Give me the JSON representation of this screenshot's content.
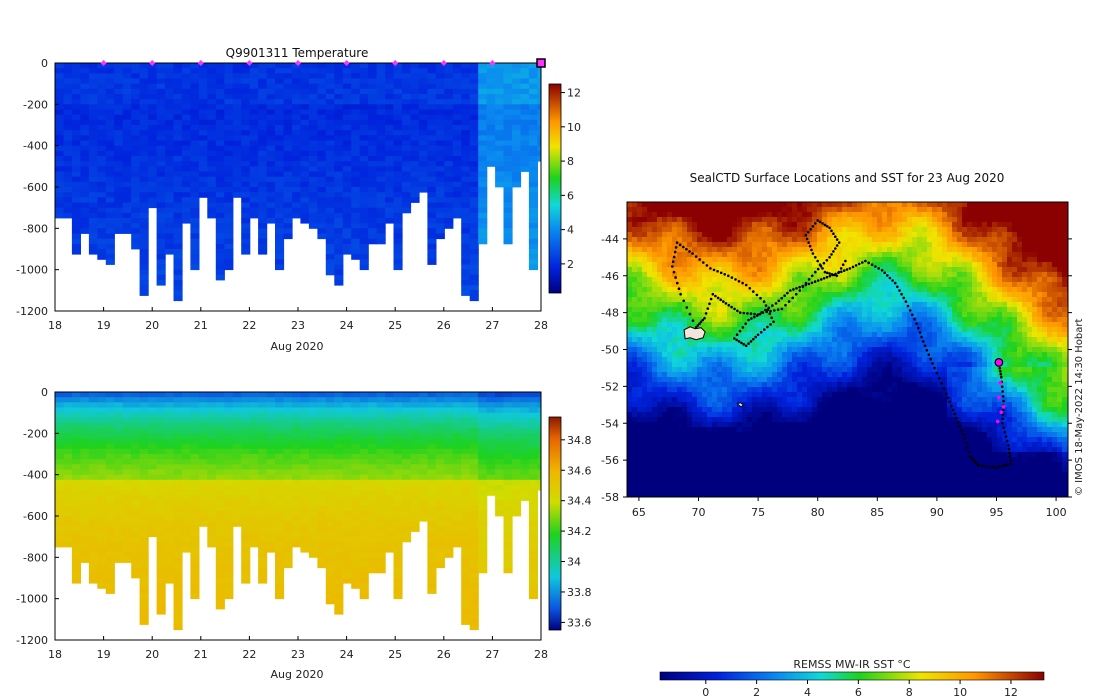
{
  "chart_data": [
    {
      "type": "heatmap",
      "title": "Q9901311  Temperature",
      "variable": "temperature",
      "xlabel": "Aug 2020",
      "xlim": [
        18,
        28
      ],
      "xticks": [
        "18",
        "19",
        "20",
        "21",
        "22",
        "23",
        "24",
        "25",
        "26",
        "27",
        "28"
      ],
      "ylim": [
        -1200,
        0
      ],
      "yticks": [
        "0",
        "-200",
        "-400",
        "-600",
        "-800",
        "-1000",
        "-1200"
      ],
      "colorbar": {
        "min": 0.3,
        "max": 12.5,
        "ticks": [
          "2",
          "4",
          "6",
          "8",
          "10",
          "12"
        ]
      },
      "marker_color": "#ff33ff",
      "profile_markers_day": [
        19,
        20,
        21,
        22,
        23,
        24,
        25,
        26,
        27
      ],
      "last_profile_day": 28
    },
    {
      "type": "heatmap",
      "title": "",
      "variable": "salinity",
      "xlabel": "Aug 2020",
      "xlim": [
        18,
        28
      ],
      "xticks": [
        "18",
        "19",
        "20",
        "21",
        "22",
        "23",
        "24",
        "25",
        "26",
        "27",
        "28"
      ],
      "ylim": [
        -1200,
        0
      ],
      "yticks": [
        "0",
        "-200",
        "-400",
        "-600",
        "-800",
        "-1000",
        "-1200"
      ],
      "colorbar": {
        "min": 33.55,
        "max": 34.95,
        "ticks": [
          "33.6",
          "33.8",
          "34",
          "34.2",
          "34.4",
          "34.6",
          "34.8"
        ]
      }
    },
    {
      "type": "heatmap",
      "title": "SealCTD Surface Locations and SST for 23 Aug 2020",
      "xlim": [
        64,
        101
      ],
      "xticks": [
        "65",
        "70",
        "75",
        "80",
        "85",
        "90",
        "95",
        "100"
      ],
      "ylim": [
        -58,
        -42
      ],
      "yticks": [
        "-44",
        "-46",
        "-48",
        "-50",
        "-52",
        "-54",
        "-56",
        "-58"
      ],
      "colorbar": {
        "label": "REMSS MW-IR SST °C",
        "min": -1.8,
        "max": 13.3,
        "ticks": [
          "0",
          "2",
          "4",
          "6",
          "8",
          "10",
          "12"
        ]
      },
      "current_position": {
        "lon": 95.2,
        "lat": -50.7
      },
      "credit": "© IMOS 18-May-2022 14:30 Hobart"
    }
  ]
}
